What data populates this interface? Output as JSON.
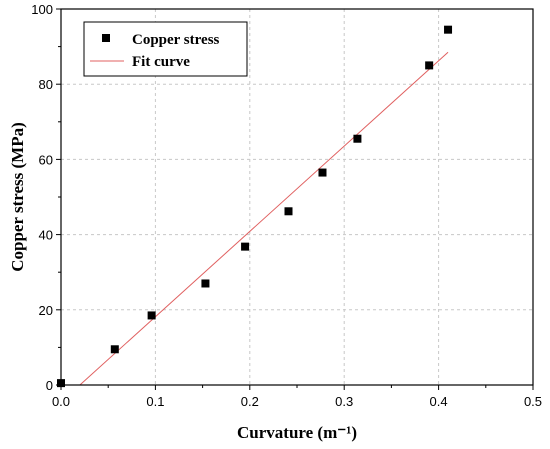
{
  "chart_data": {
    "type": "scatter",
    "title": "",
    "xlabel": "Curvature (m⁻¹)",
    "ylabel": "Copper stress (MPa)",
    "xlim": [
      0.0,
      0.5
    ],
    "ylim": [
      0,
      100
    ],
    "xticks": [
      0.0,
      0.1,
      0.2,
      0.3,
      0.4,
      0.5
    ],
    "yticks": [
      0,
      20,
      40,
      60,
      80,
      100
    ],
    "xtick_labels": [
      "0.0",
      "0.1",
      "0.2",
      "0.3",
      "0.4",
      "0.5"
    ],
    "ytick_labels": [
      "0",
      "20",
      "40",
      "60",
      "80",
      "100"
    ],
    "grid": true,
    "legend_position": "top-left",
    "series": [
      {
        "name": "Copper stress",
        "kind": "scatter",
        "marker": "square",
        "color": "#000000",
        "x": [
          0.0,
          0.057,
          0.096,
          0.153,
          0.195,
          0.241,
          0.277,
          0.314,
          0.39,
          0.41
        ],
        "y": [
          0.5,
          9.5,
          18.5,
          27.0,
          36.8,
          46.2,
          56.5,
          65.5,
          85.0,
          94.5
        ]
      },
      {
        "name": "Fit curve",
        "kind": "line",
        "color": "#e06060",
        "x": [
          0.02,
          0.41
        ],
        "y": [
          0.0,
          88.5
        ]
      }
    ]
  }
}
